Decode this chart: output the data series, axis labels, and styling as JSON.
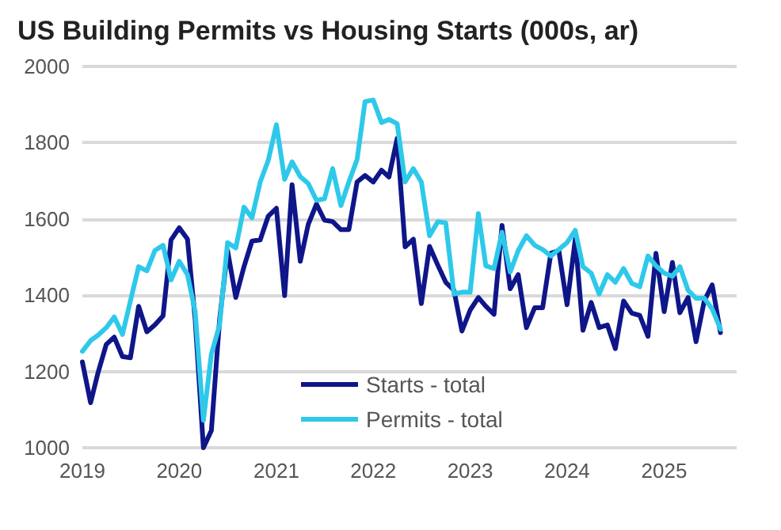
{
  "chart_data": {
    "type": "line",
    "title": "US Building Permits vs Housing Starts (000s, ar)",
    "x": [
      "2019-01",
      "2019-02",
      "2019-03",
      "2019-04",
      "2019-05",
      "2019-06",
      "2019-07",
      "2019-08",
      "2019-09",
      "2019-10",
      "2019-11",
      "2019-12",
      "2020-01",
      "2020-02",
      "2020-03",
      "2020-04",
      "2020-05",
      "2020-06",
      "2020-07",
      "2020-08",
      "2020-09",
      "2020-10",
      "2020-11",
      "2020-12",
      "2021-01",
      "2021-02",
      "2021-03",
      "2021-04",
      "2021-05",
      "2021-06",
      "2021-07",
      "2021-08",
      "2021-09",
      "2021-10",
      "2021-11",
      "2021-12",
      "2022-01",
      "2022-02",
      "2022-03",
      "2022-04",
      "2022-05",
      "2022-06",
      "2022-07",
      "2022-08",
      "2022-09",
      "2022-10",
      "2022-11",
      "2022-12",
      "2023-01",
      "2023-02",
      "2023-03",
      "2023-04",
      "2023-05",
      "2023-06",
      "2023-07",
      "2023-08",
      "2023-09",
      "2023-10",
      "2023-11",
      "2023-12",
      "2024-01",
      "2024-02",
      "2024-03",
      "2024-04",
      "2024-05",
      "2024-06",
      "2024-07",
      "2024-08",
      "2024-09",
      "2024-10",
      "2024-11",
      "2024-12",
      "2025-01",
      "2025-02",
      "2025-03",
      "2025-04",
      "2025-05",
      "2025-06",
      "2025-07",
      "2025-08"
    ],
    "series": [
      {
        "name": "Starts - total",
        "color": "#0f1689",
        "values": [
          1225,
          1118,
          1197,
          1271,
          1290,
          1239,
          1236,
          1371,
          1304,
          1322,
          1346,
          1545,
          1577,
          1547,
          1336,
          1000,
          1045,
          1336,
          1517,
          1394,
          1475,
          1542,
          1545,
          1607,
          1628,
          1399,
          1690,
          1489,
          1586,
          1639,
          1597,
          1593,
          1572,
          1572,
          1697,
          1714,
          1697,
          1728,
          1710,
          1811,
          1527,
          1547,
          1378,
          1528,
          1479,
          1434,
          1413,
          1306,
          1361,
          1394,
          1371,
          1350,
          1583,
          1417,
          1454,
          1315,
          1367,
          1367,
          1510,
          1517,
          1375,
          1547,
          1308,
          1381,
          1315,
          1322,
          1260,
          1385,
          1353,
          1347,
          1292,
          1510,
          1357,
          1486,
          1354,
          1394,
          1278,
          1385,
          1427,
          1302
        ]
      },
      {
        "name": "Permits - total",
        "color": "#2ec9ea",
        "values": [
          1253,
          1281,
          1295,
          1315,
          1343,
          1297,
          1385,
          1475,
          1464,
          1517,
          1531,
          1440,
          1489,
          1454,
          1357,
          1072,
          1246,
          1322,
          1538,
          1524,
          1631,
          1603,
          1697,
          1753,
          1847,
          1704,
          1750,
          1711,
          1693,
          1649,
          1653,
          1732,
          1635,
          1697,
          1756,
          1908,
          1912,
          1853,
          1861,
          1850,
          1697,
          1732,
          1697,
          1556,
          1593,
          1590,
          1403,
          1408,
          1408,
          1614,
          1477,
          1470,
          1565,
          1461,
          1517,
          1556,
          1531,
          1520,
          1503,
          1520,
          1538,
          1570,
          1475,
          1458,
          1403,
          1454,
          1434,
          1470,
          1431,
          1422,
          1503,
          1477,
          1458,
          1450,
          1475,
          1413,
          1392,
          1392,
          1364,
          1311
        ]
      }
    ],
    "xlim": [
      "2019-01",
      "2025-10"
    ],
    "xticks": [
      "2019",
      "2020",
      "2021",
      "2022",
      "2023",
      "2024",
      "2025"
    ],
    "ylim": [
      1000,
      2000
    ],
    "yticks": [
      1000,
      1200,
      1400,
      1600,
      1800,
      2000
    ],
    "grid": "y",
    "legend": "bottom",
    "line_style": "solid",
    "marker": "none"
  }
}
